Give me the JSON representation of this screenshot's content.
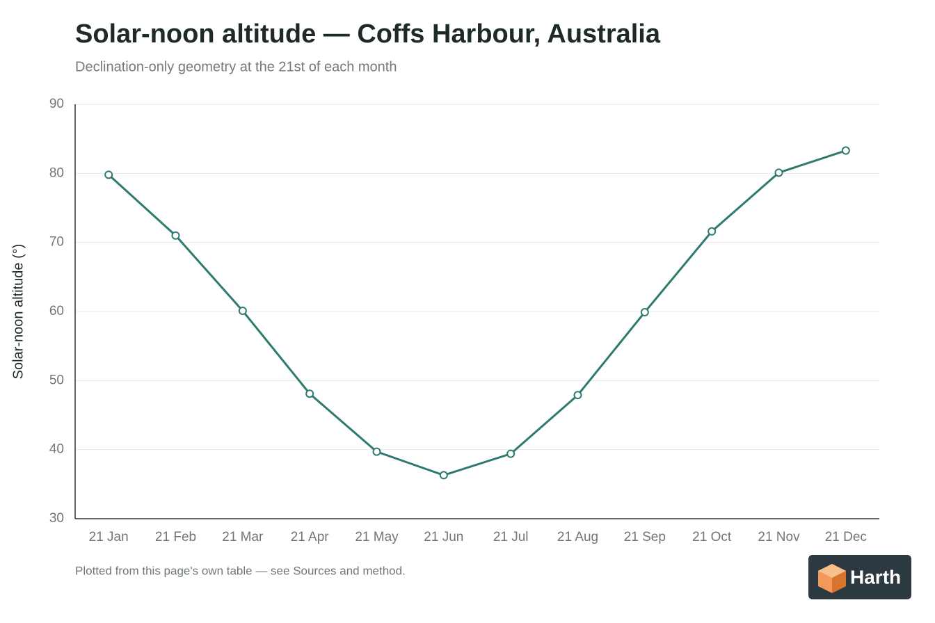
{
  "chart_data": {
    "type": "line",
    "title": "Solar-noon altitude — Coffs Harbour, Australia",
    "subtitle": "Declination-only geometry at the 21st of each month",
    "y_label": "Solar-noon altitude (°)",
    "categories": [
      "21 Jan",
      "21 Feb",
      "21 Mar",
      "21 Apr",
      "21 May",
      "21 Jun",
      "21 Jul",
      "21 Aug",
      "21 Sep",
      "21 Oct",
      "21 Nov",
      "21 Dec"
    ],
    "values": [
      79.8,
      71.0,
      60.1,
      48.1,
      39.7,
      36.3,
      39.4,
      47.9,
      59.9,
      71.6,
      80.1,
      83.3
    ],
    "color": "#2e7a6e",
    "ylim": [
      30,
      90
    ],
    "yticks": [
      30,
      40,
      50,
      60,
      70,
      80,
      90
    ],
    "grid": true
  },
  "footer": {
    "note": "Plotted from this page's own table — see Sources and method.",
    "logo": "Harth"
  }
}
